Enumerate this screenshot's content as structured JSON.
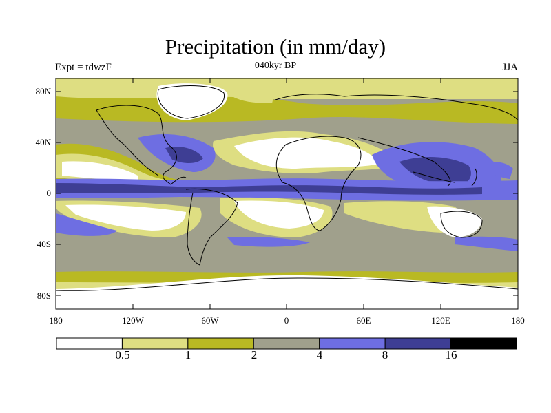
{
  "title": "Precipitation (in mm/day)",
  "subtitle_left": "Expt = tdwzF",
  "subtitle_center": "040kyr BP",
  "subtitle_right": "JJA",
  "map": {
    "projection": "cylindrical equidistant",
    "field": "precipitation",
    "units": "mm/day",
    "lon_range": [
      -180,
      180
    ],
    "lat_range": [
      -90,
      90
    ],
    "lat_ticks": [
      "80N",
      "40N",
      "0",
      "40S",
      "80S"
    ],
    "lon_ticks": [
      "180",
      "120W",
      "60W",
      "0",
      "60E",
      "120E",
      "180"
    ]
  },
  "colorbar": {
    "levels": [
      "0.5",
      "1",
      "2",
      "4",
      "8",
      "16"
    ],
    "colors": [
      "#ffffff",
      "#dede82",
      "#b9b923",
      "#a0a08c",
      "#6e6ee2",
      "#3e3e94",
      "#000000"
    ]
  }
}
